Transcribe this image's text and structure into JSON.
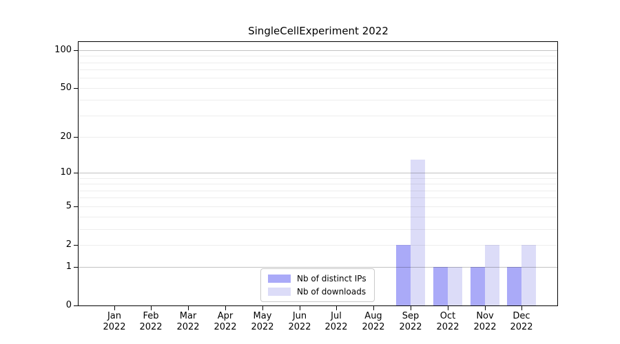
{
  "chart_data": {
    "type": "bar",
    "title": "SingleCellExperiment 2022",
    "categories": [
      "Jan 2022",
      "Feb 2022",
      "Mar 2022",
      "Apr 2022",
      "May 2022",
      "Jun 2022",
      "Jul 2022",
      "Aug 2022",
      "Sep 2022",
      "Oct 2022",
      "Nov 2022",
      "Dec 2022"
    ],
    "series": [
      {
        "name": "Nb of distinct IPs",
        "color": "#aaaaf8",
        "values": [
          0,
          0,
          0,
          0,
          0,
          0,
          0,
          0,
          2,
          1,
          1,
          1
        ]
      },
      {
        "name": "Nb of downloads",
        "color": "#dcdcf8",
        "values": [
          0,
          0,
          0,
          0,
          0,
          0,
          0,
          0,
          13,
          1,
          2,
          2
        ]
      }
    ],
    "xlabel": "",
    "ylabel": "",
    "y_scale": "log1p",
    "ylim": [
      0,
      116
    ],
    "y_tick_labels": [
      0,
      1,
      2,
      5,
      10,
      20,
      50,
      100
    ],
    "y_major_gridlines": [
      1,
      10,
      100
    ],
    "y_minor_gridlines": [
      2,
      3,
      4,
      5,
      6,
      7,
      8,
      9,
      20,
      30,
      40,
      50,
      60,
      70,
      80,
      90
    ],
    "grid": true,
    "legend_position": "lower center inside",
    "colors": {
      "spine": "#000000",
      "background": "#ffffff",
      "bar_distinct_ips": "#aaaaf8",
      "bar_downloads": "#dcdcf8"
    }
  }
}
